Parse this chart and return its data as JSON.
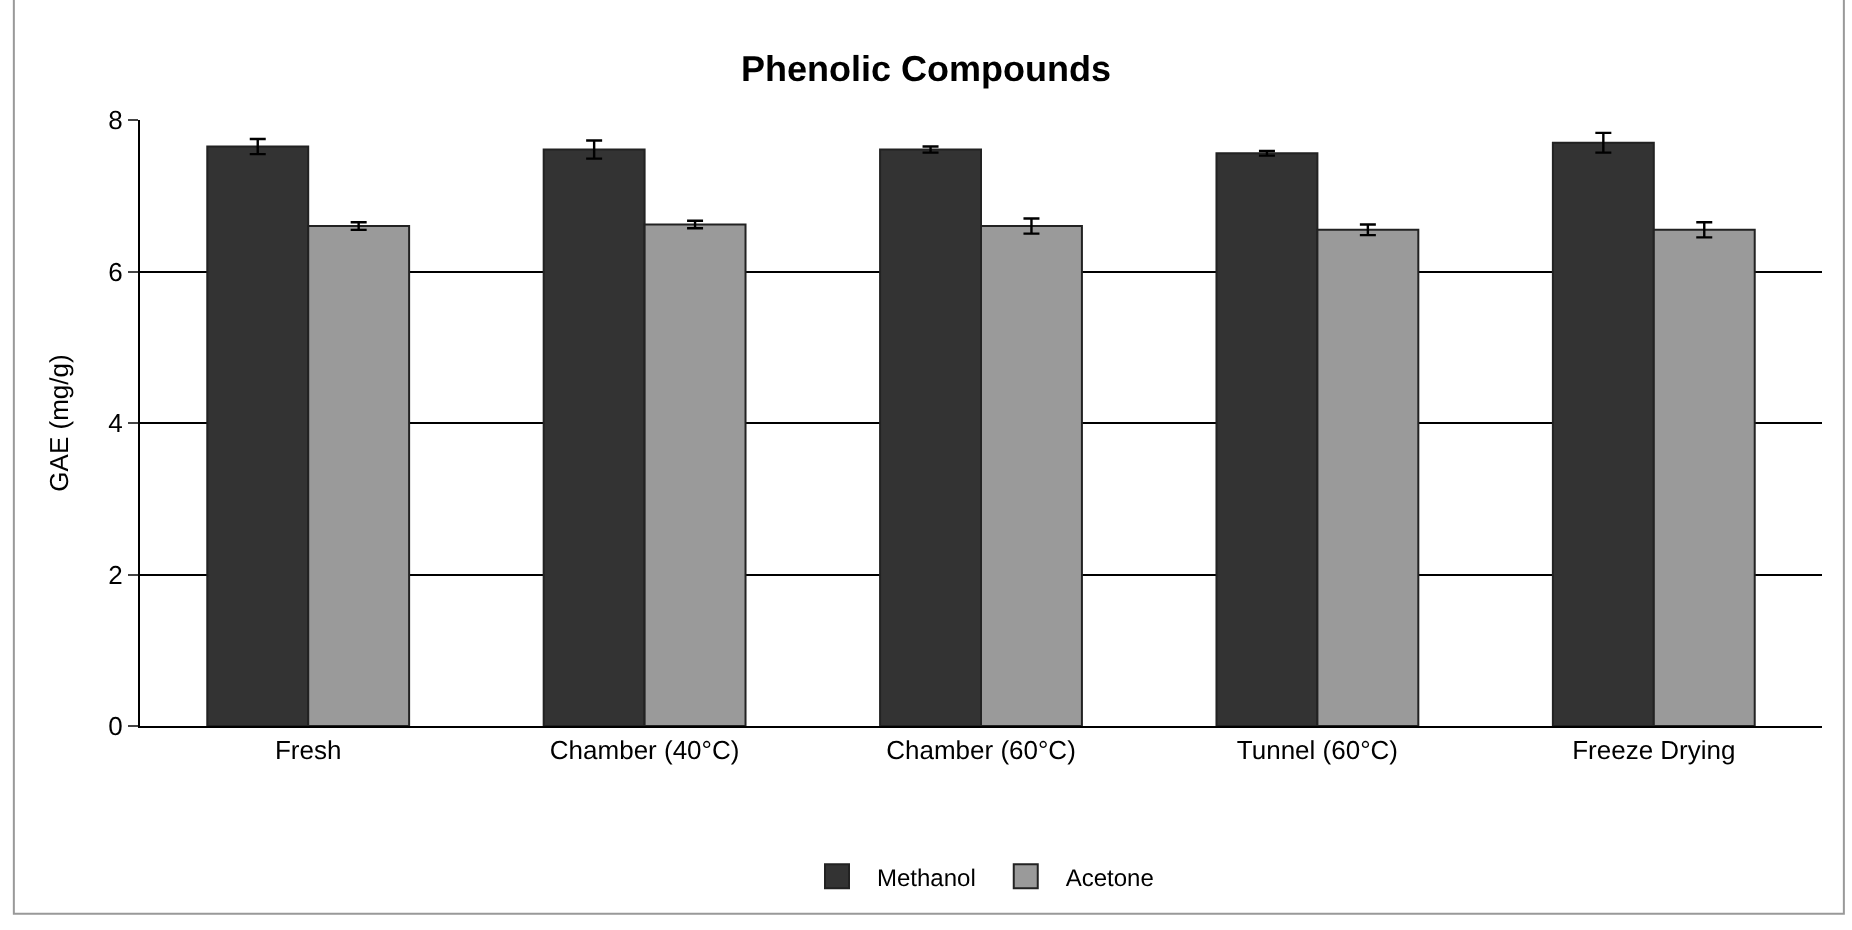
{
  "chart_data": {
    "type": "bar",
    "title": "Phenolic Compounds",
    "ylabel": "GAE (mg/g)",
    "categories": [
      "Fresh",
      "Chamber (40°C)",
      "Chamber (60°C)",
      "Tunnel (60°C)",
      "Freeze Drying"
    ],
    "series": [
      {
        "name": "Methanol",
        "color": "#333333",
        "values": [
          7.65,
          7.61,
          7.61,
          7.56,
          7.7
        ],
        "errors": [
          0.1,
          0.12,
          0.04,
          0.03,
          0.13
        ]
      },
      {
        "name": "Acetone",
        "color": "#9a9a9a",
        "values": [
          6.6,
          6.62,
          6.6,
          6.55,
          6.55
        ],
        "errors": [
          0.05,
          0.05,
          0.1,
          0.07,
          0.1
        ]
      }
    ],
    "ylim": [
      0,
      8
    ],
    "yticks": [
      0,
      2,
      4,
      6,
      8
    ],
    "grid": "y",
    "legend": "bottom"
  }
}
